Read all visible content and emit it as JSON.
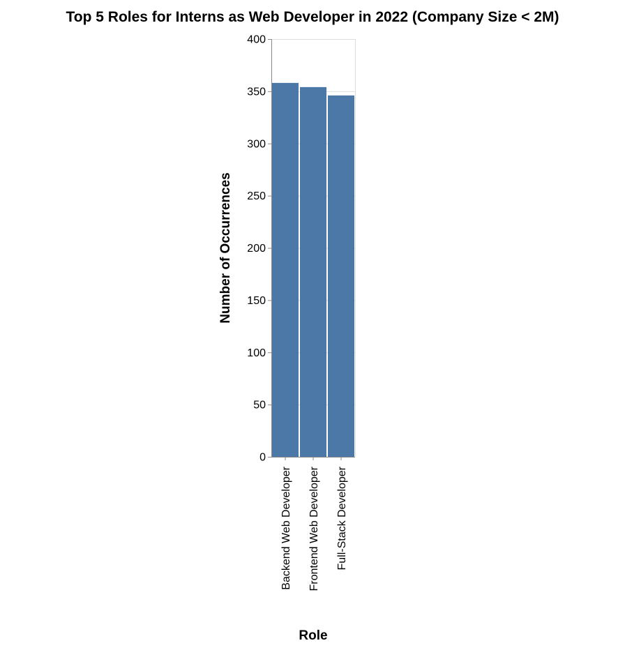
{
  "chart_data": {
    "type": "bar",
    "title": "Top 5 Roles for Interns as Web Developer in 2022 (Company Size < 2M)",
    "xlabel": "Role",
    "ylabel": "Number of Occurrences",
    "categories": [
      "Backend Web Developer",
      "Frontend Web Developer",
      "Full-Stack Developer"
    ],
    "values": [
      358,
      354,
      346
    ],
    "ylim": [
      0,
      400
    ],
    "yticks": [
      0,
      50,
      100,
      150,
      200,
      250,
      300,
      350,
      400
    ],
    "grid": true,
    "bar_color": "#4c78a8"
  }
}
